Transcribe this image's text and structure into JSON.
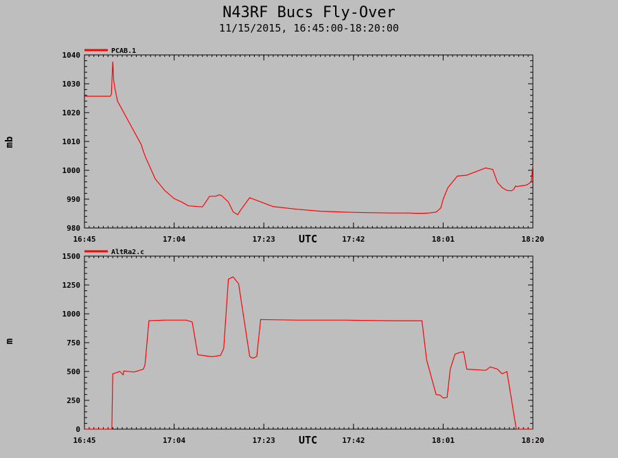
{
  "title": "N43RF Bucs Fly-Over",
  "subtitle": "11/15/2015, 16:45:00-18:20:00",
  "colors": {
    "background": "#bebebe",
    "trace": "#ff0000",
    "axis": "#000000"
  },
  "chart_data": [
    {
      "type": "line",
      "ylabel": "mb",
      "xlabel": "UTC",
      "xlim": [
        "16:45",
        "18:20"
      ],
      "ylim": [
        980,
        1040
      ],
      "yticks": [
        980,
        990,
        1000,
        1010,
        1020,
        1030,
        1040
      ],
      "xtick_labels": [
        "16:45",
        "17:04",
        "17:23",
        "17:42",
        "18:01",
        "18:20"
      ],
      "grid": false,
      "legend_position": "top-left",
      "series": [
        {
          "name": "PCAB.1",
          "color": "#ff0000",
          "x": [
            "16:45:00",
            "16:50:30",
            "16:50:42",
            "16:51:00",
            "16:51:12",
            "16:51:30",
            "16:52:00",
            "16:53:00",
            "16:55:00",
            "16:57:00",
            "16:57:36",
            "16:58:00",
            "17:00:00",
            "17:02:00",
            "17:04:00",
            "17:05:36",
            "17:07:00",
            "17:10:00",
            "17:10:30",
            "17:11:30",
            "17:12:48",
            "17:13:30",
            "17:14:00",
            "17:15:30",
            "17:16:30",
            "17:17:30",
            "17:18:00",
            "17:20:00",
            "17:25:00",
            "17:30:00",
            "17:35:00",
            "17:40:00",
            "17:45:00",
            "17:50:00",
            "17:54:00",
            "17:55:00",
            "17:57:00",
            "17:58:00",
            "17:59:30",
            "17:59:45",
            "18:00:30",
            "18:01:00",
            "18:02:00",
            "18:03:30",
            "18:04:00",
            "18:06:00",
            "18:10:00",
            "18:11:30",
            "18:12:30",
            "18:13:30",
            "18:14:30",
            "18:15:30",
            "18:16:00",
            "18:16:20",
            "18:16:40",
            "18:17:00",
            "18:18:30",
            "18:19:00",
            "18:19:20",
            "18:19:40",
            "18:20:00"
          ],
          "values": [
            1025.7,
            1025.7,
            1026.4,
            1037.6,
            1031,
            1028,
            1024,
            1021,
            1015,
            1009,
            1006,
            1004.3,
            997,
            993,
            990.2,
            989,
            987.7,
            987.3,
            988.5,
            991,
            991,
            991.5,
            991.3,
            989,
            985.6,
            984.6,
            986,
            990.5,
            987.4,
            986.5,
            985.8,
            985.5,
            985.3,
            985.2,
            985.2,
            985.1,
            985.1,
            985.2,
            985.5,
            985.8,
            987,
            990,
            994,
            997,
            998,
            998.3,
            1000.8,
            1000.3,
            995.8,
            994,
            993,
            992.9,
            993.5,
            994.6,
            994.3,
            994.5,
            994.8,
            995.2,
            995.6,
            996,
            1002
          ]
        }
      ]
    },
    {
      "type": "line",
      "ylabel": "m",
      "xlabel": "UTC",
      "xlim": [
        "16:45",
        "18:20"
      ],
      "ylim": [
        0,
        1500
      ],
      "yticks": [
        0,
        250,
        500,
        750,
        1000,
        1250,
        1500
      ],
      "xtick_labels": [
        "16:45",
        "17:04",
        "17:23",
        "17:42",
        "18:01",
        "18:20"
      ],
      "grid": false,
      "legend_position": "top-left",
      "series": [
        {
          "name": "AltRa2.c",
          "color": "#ff0000",
          "x": [
            "16:45:00",
            "16:48:36",
            "16:50:48",
            "16:51:00",
            "16:52:30",
            "16:53:12",
            "16:53:18",
            "16:55:30",
            "16:57:30",
            "16:57:50",
            "16:58:40",
            "17:02:00",
            "17:06:30",
            "17:07:50",
            "17:09:00",
            "17:12:00",
            "17:12:20",
            "17:13:50",
            "17:14:30",
            "17:15:30",
            "17:16:00",
            "17:16:30",
            "17:17:40",
            "17:20:00",
            "17:20:40",
            "17:21:30",
            "17:22:20",
            "17:30:00",
            "17:40:00",
            "17:50:00",
            "17:56:30",
            "17:57:30",
            "17:59:30",
            "18:00:20",
            "18:01:00",
            "18:01:50",
            "18:02:30",
            "18:03:30",
            "18:04:30",
            "18:05:20",
            "18:06:00",
            "18:10:00",
            "18:11:00",
            "18:12:30",
            "18:13:30",
            "18:14:30",
            "18:16:30",
            "18:18:00",
            "18:20:00"
          ],
          "values": [
            0,
            0,
            0,
            480,
            500,
            470,
            505,
            495,
            520,
            560,
            940,
            945,
            945,
            930,
            645,
            628,
            630,
            640,
            700,
            1300,
            1310,
            1320,
            1260,
            630,
            615,
            630,
            950,
            945,
            945,
            940,
            940,
            600,
            300,
            295,
            270,
            275,
            520,
            650,
            665,
            670,
            520,
            510,
            540,
            520,
            480,
            500,
            0,
            0,
            0
          ]
        }
      ]
    }
  ]
}
